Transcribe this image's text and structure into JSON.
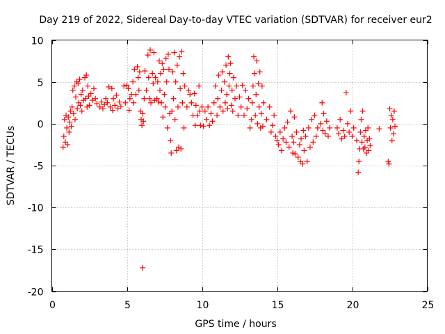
{
  "chart_data": {
    "type": "scatter",
    "title": "Day 219 of 2022, Sidereal Day-to-day VTEC variation (SDTVAR) for receiver eur2",
    "xlabel": "GPS time / hours",
    "ylabel": "SDTVAR / TECUs",
    "xlim": [
      0,
      25
    ],
    "ylim": [
      -20,
      10
    ],
    "xticks": [
      0,
      5,
      10,
      15,
      20,
      25
    ],
    "yticks": [
      10,
      5,
      0,
      -5,
      -10,
      -15,
      -20
    ],
    "xtick_labels": [
      "0",
      "5",
      "10",
      "15",
      "20",
      "25"
    ],
    "ytick_labels": [
      "10",
      "5",
      "0",
      "-5",
      "-10",
      "-15",
      "-20"
    ],
    "grid": true,
    "marker": "+",
    "color": "#ff0000",
    "series": [
      {
        "name": "SDTVAR",
        "points": [
          [
            0.75,
            -2.8
          ],
          [
            0.8,
            -1.5
          ],
          [
            0.85,
            0.5
          ],
          [
            0.9,
            -2.2
          ],
          [
            0.95,
            1.0
          ],
          [
            1.0,
            -0.5
          ],
          [
            1.05,
            -2.5
          ],
          [
            1.1,
            0.8
          ],
          [
            1.15,
            -1.0
          ],
          [
            1.2,
            0.2
          ],
          [
            1.25,
            1.5
          ],
          [
            1.3,
            -0.3
          ],
          [
            1.35,
            2.0
          ],
          [
            1.4,
            4.0
          ],
          [
            1.45,
            1.2
          ],
          [
            1.5,
            4.5
          ],
          [
            1.55,
            0.5
          ],
          [
            1.6,
            3.2
          ],
          [
            1.65,
            5.0
          ],
          [
            1.7,
            1.8
          ],
          [
            1.75,
            4.8
          ],
          [
            1.8,
            2.5
          ],
          [
            1.85,
            5.3
          ],
          [
            1.9,
            2.2
          ],
          [
            1.95,
            3.5
          ],
          [
            2.0,
            1.5
          ],
          [
            2.05,
            4.0
          ],
          [
            2.1,
            2.8
          ],
          [
            2.2,
            5.5
          ],
          [
            2.25,
            3.0
          ],
          [
            2.3,
            5.8
          ],
          [
            2.35,
            2.0
          ],
          [
            2.4,
            4.5
          ],
          [
            2.45,
            3.3
          ],
          [
            2.5,
            2.2
          ],
          [
            2.6,
            3.6
          ],
          [
            2.7,
            2.8
          ],
          [
            2.8,
            4.2
          ],
          [
            2.9,
            3.0
          ],
          [
            3.0,
            2.4
          ],
          [
            3.2,
            2.0
          ],
          [
            3.3,
            2.6
          ],
          [
            3.4,
            1.8
          ],
          [
            3.5,
            2.3
          ],
          [
            3.6,
            3.0
          ],
          [
            3.7,
            2.5
          ],
          [
            3.8,
            4.4
          ],
          [
            3.9,
            2.0
          ],
          [
            4.0,
            4.2
          ],
          [
            4.05,
            1.6
          ],
          [
            4.1,
            3.0
          ],
          [
            4.2,
            2.2
          ],
          [
            4.3,
            3.4
          ],
          [
            4.4,
            1.8
          ],
          [
            4.5,
            2.6
          ],
          [
            4.6,
            2.1
          ],
          [
            4.8,
            4.5
          ],
          [
            4.9,
            2.5
          ],
          [
            5.0,
            4.6
          ],
          [
            5.1,
            4.2
          ],
          [
            5.15,
            1.6
          ],
          [
            5.2,
            3.0
          ],
          [
            5.3,
            3.5
          ],
          [
            5.4,
            5.0
          ],
          [
            5.45,
            2.5
          ],
          [
            5.5,
            6.5
          ],
          [
            5.6,
            3.5
          ],
          [
            5.7,
            6.8
          ],
          [
            5.75,
            5.5
          ],
          [
            5.8,
            4.0
          ],
          [
            5.85,
            6.2
          ],
          [
            5.9,
            1.5
          ],
          [
            5.95,
            0.5
          ],
          [
            6.0,
            -0.2
          ],
          [
            6.05,
            1.2
          ],
          [
            6.1,
            0.3
          ],
          [
            6.15,
            3.0
          ],
          [
            6.2,
            6.3
          ],
          [
            6.3,
            4.0
          ],
          [
            6.4,
            8.2
          ],
          [
            6.45,
            5.5
          ],
          [
            6.5,
            3.0
          ],
          [
            6.55,
            8.8
          ],
          [
            6.6,
            2.5
          ],
          [
            6.7,
            6.0
          ],
          [
            6.75,
            4.8
          ],
          [
            6.8,
            8.5
          ],
          [
            6.85,
            2.8
          ],
          [
            6.9,
            5.5
          ],
          [
            7.0,
            3.0
          ],
          [
            7.05,
            5.0
          ],
          [
            7.1,
            2.6
          ],
          [
            7.15,
            7.5
          ],
          [
            7.2,
            4.0
          ],
          [
            7.25,
            6.0
          ],
          [
            7.3,
            2.5
          ],
          [
            7.35,
            7.2
          ],
          [
            7.4,
            0.8
          ],
          [
            7.45,
            6.5
          ],
          [
            7.5,
            3.5
          ],
          [
            7.55,
            2.0
          ],
          [
            7.6,
            7.8
          ],
          [
            7.65,
            5.0
          ],
          [
            7.7,
            -0.5
          ],
          [
            7.75,
            8.3
          ],
          [
            7.8,
            6.5
          ],
          [
            7.85,
            1.2
          ],
          [
            7.9,
            -2.0
          ],
          [
            7.95,
            -3.5
          ],
          [
            8.0,
            1.5
          ],
          [
            8.05,
            6.2
          ],
          [
            8.1,
            3.0
          ],
          [
            8.15,
            8.5
          ],
          [
            8.2,
            0.5
          ],
          [
            8.25,
            5.0
          ],
          [
            8.3,
            -3.2
          ],
          [
            8.35,
            7.0
          ],
          [
            8.4,
            2.0
          ],
          [
            8.45,
            -2.8
          ],
          [
            8.5,
            8.0
          ],
          [
            8.55,
            4.2
          ],
          [
            8.6,
            -3.0
          ],
          [
            8.65,
            8.6
          ],
          [
            8.7,
            2.5
          ],
          [
            8.75,
            6.0
          ],
          [
            8.8,
            -0.5
          ],
          [
            8.85,
            4.5
          ],
          [
            9.0,
            2.0
          ],
          [
            9.1,
            4.0
          ],
          [
            9.2,
            3.5
          ],
          [
            9.3,
            2.5
          ],
          [
            9.4,
            1.0
          ],
          [
            9.5,
            3.6
          ],
          [
            9.55,
            -0.2
          ],
          [
            9.6,
            2.2
          ],
          [
            9.7,
            1.0
          ],
          [
            9.8,
            4.5
          ],
          [
            9.85,
            1.5
          ],
          [
            9.9,
            -0.2
          ],
          [
            10.0,
            2.0
          ],
          [
            10.1,
            -0.3
          ],
          [
            10.2,
            1.5
          ],
          [
            10.3,
            0.5
          ],
          [
            10.4,
            2.0
          ],
          [
            10.5,
            -0.2
          ],
          [
            10.6,
            1.2
          ],
          [
            10.7,
            0.3
          ],
          [
            10.8,
            2.5
          ],
          [
            10.9,
            4.5
          ],
          [
            11.0,
            1.0
          ],
          [
            11.05,
            3.0
          ],
          [
            11.1,
            5.8
          ],
          [
            11.2,
            2.0
          ],
          [
            11.3,
            4.0
          ],
          [
            11.35,
            6.2
          ],
          [
            11.4,
            1.5
          ],
          [
            11.5,
            5.0
          ],
          [
            11.55,
            2.5
          ],
          [
            11.6,
            7.0
          ],
          [
            11.65,
            3.5
          ],
          [
            11.7,
            1.8
          ],
          [
            11.75,
            8.0
          ],
          [
            11.8,
            4.5
          ],
          [
            11.85,
            6.0
          ],
          [
            11.9,
            7.2
          ],
          [
            11.95,
            2.2
          ],
          [
            12.0,
            4.0
          ],
          [
            12.05,
            1.5
          ],
          [
            12.1,
            5.5
          ],
          [
            12.2,
            3.0
          ],
          [
            12.3,
            4.5
          ],
          [
            12.4,
            1.0
          ],
          [
            12.5,
            3.2
          ],
          [
            12.6,
            2.0
          ],
          [
            12.7,
            4.6
          ],
          [
            12.8,
            1.0
          ],
          [
            12.9,
            4.0
          ],
          [
            13.0,
            1.8
          ],
          [
            13.1,
            3.0
          ],
          [
            13.2,
            -0.5
          ],
          [
            13.3,
            0.5
          ],
          [
            13.35,
            2.5
          ],
          [
            13.4,
            4.5
          ],
          [
            13.45,
            8.0
          ],
          [
            13.5,
            6.0
          ],
          [
            13.55,
            1.0
          ],
          [
            13.6,
            3.5
          ],
          [
            13.65,
            7.5
          ],
          [
            13.7,
            0.0
          ],
          [
            13.75,
            4.8
          ],
          [
            13.8,
            2.0
          ],
          [
            13.85,
            6.2
          ],
          [
            13.9,
            -0.5
          ],
          [
            13.95,
            1.2
          ],
          [
            14.0,
            4.5
          ],
          [
            14.05,
            -0.3
          ],
          [
            14.1,
            2.5
          ],
          [
            14.3,
            0.5
          ],
          [
            14.5,
            2.0
          ],
          [
            14.6,
            -1.0
          ],
          [
            14.7,
            -0.2
          ],
          [
            14.8,
            1.0
          ],
          [
            14.9,
            -1.5
          ],
          [
            15.0,
            -2.0
          ],
          [
            15.1,
            -2.5
          ],
          [
            15.2,
            -1.0
          ],
          [
            15.3,
            -3.2
          ],
          [
            15.4,
            -1.8
          ],
          [
            15.5,
            -0.5
          ],
          [
            15.6,
            -2.2
          ],
          [
            15.7,
            0.2
          ],
          [
            15.8,
            -2.8
          ],
          [
            15.9,
            1.5
          ],
          [
            16.0,
            -1.5
          ],
          [
            16.05,
            -3.5
          ],
          [
            16.1,
            -2.2
          ],
          [
            16.15,
            0.8
          ],
          [
            16.2,
            -3.6
          ],
          [
            16.3,
            -1.0
          ],
          [
            16.4,
            -4.0
          ],
          [
            16.5,
            -2.5
          ],
          [
            16.55,
            -4.5
          ],
          [
            16.6,
            -1.8
          ],
          [
            16.7,
            -4.8
          ],
          [
            16.75,
            -0.8
          ],
          [
            16.8,
            -3.2
          ],
          [
            16.9,
            -1.5
          ],
          [
            17.0,
            -4.5
          ],
          [
            17.1,
            -0.5
          ],
          [
            17.2,
            -2.8
          ],
          [
            17.3,
            0.5
          ],
          [
            17.4,
            -2.2
          ],
          [
            17.5,
            1.0
          ],
          [
            17.6,
            -1.5
          ],
          [
            17.7,
            -0.5
          ],
          [
            17.9,
            0.0
          ],
          [
            18.0,
            2.5
          ],
          [
            18.05,
            -0.8
          ],
          [
            18.1,
            1.2
          ],
          [
            18.2,
            -1.2
          ],
          [
            18.3,
            0.3
          ],
          [
            18.4,
            -1.5
          ],
          [
            18.5,
            -0.5
          ],
          [
            19.0,
            -0.5
          ],
          [
            19.1,
            -1.2
          ],
          [
            19.2,
            0.5
          ],
          [
            19.3,
            -1.8
          ],
          [
            19.4,
            -0.8
          ],
          [
            19.5,
            -1.5
          ],
          [
            19.6,
            3.7
          ],
          [
            19.7,
            0.0
          ],
          [
            19.8,
            -1.0
          ],
          [
            19.9,
            1.5
          ],
          [
            20.0,
            -1.5
          ],
          [
            20.1,
            -0.5
          ],
          [
            20.3,
            -2.0
          ],
          [
            20.4,
            -5.8
          ],
          [
            20.45,
            -4.5
          ],
          [
            20.5,
            -3.0
          ],
          [
            20.55,
            -1.0
          ],
          [
            20.6,
            0.5
          ],
          [
            20.65,
            -2.2
          ],
          [
            20.7,
            1.5
          ],
          [
            20.75,
            -3.0
          ],
          [
            20.8,
            -1.5
          ],
          [
            20.85,
            -2.8
          ],
          [
            20.9,
            -0.8
          ],
          [
            20.95,
            -3.5
          ],
          [
            21.0,
            -2.0
          ],
          [
            21.05,
            -0.5
          ],
          [
            21.1,
            -3.2
          ],
          [
            21.15,
            -1.8
          ],
          [
            21.2,
            -2.6
          ],
          [
            21.8,
            -0.6
          ],
          [
            22.4,
            -4.5
          ],
          [
            22.45,
            -4.8
          ],
          [
            22.5,
            1.8
          ],
          [
            22.55,
            -0.5
          ],
          [
            22.6,
            1.0
          ],
          [
            22.65,
            -2.0
          ],
          [
            22.7,
            0.5
          ],
          [
            22.75,
            -1.2
          ],
          [
            22.8,
            1.5
          ],
          [
            22.85,
            -0.3
          ],
          [
            6.05,
            -17.2
          ]
        ]
      }
    ]
  }
}
